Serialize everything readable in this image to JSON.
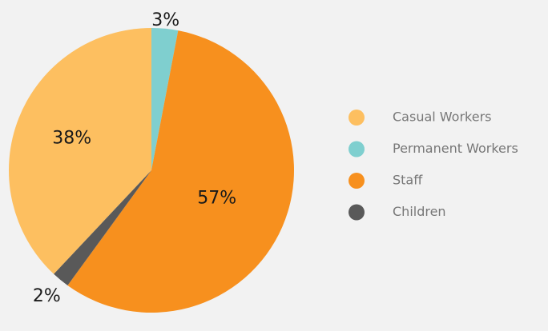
{
  "chart_data": {
    "type": "pie",
    "categories": [
      "Casual Workers",
      "Permanent Workers",
      "Staff",
      "Children"
    ],
    "values": [
      38,
      3,
      57,
      2
    ],
    "value_labels": [
      "38%",
      "3%",
      "57%",
      "2%"
    ],
    "colors": [
      "#fdbf60",
      "#7fcfcf",
      "#f7901e",
      "#595959"
    ],
    "legend": "right"
  }
}
